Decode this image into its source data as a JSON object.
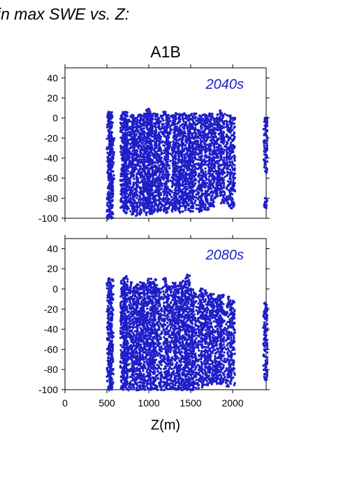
{
  "header_text": "in max SWE vs. Z:",
  "scenario_title": "A1B",
  "dot_color": "#1e1ec8",
  "chart_data": [
    {
      "type": "scatter",
      "label": "2040s",
      "xlim": [
        0,
        2400
      ],
      "ylim": [
        -100,
        50
      ],
      "y_ticks": [
        40,
        20,
        0,
        -20,
        -40,
        -60,
        -80,
        -100
      ],
      "x_ticks": [
        0,
        500,
        1000,
        1500,
        2000
      ],
      "show_x_labels": false,
      "clusters": [
        {
          "x": 530,
          "ymin": -100,
          "ymax": 6
        },
        {
          "x": 545,
          "ymin": -100,
          "ymax": 4
        },
        {
          "x": 560,
          "ymin": -70,
          "ymax": -20
        },
        {
          "x": 690,
          "ymin": -90,
          "ymax": 4
        },
        {
          "x": 720,
          "ymin": -92,
          "ymax": 6
        },
        {
          "x": 740,
          "ymin": -95,
          "ymax": -2
        },
        {
          "x": 800,
          "ymin": -96,
          "ymax": 3
        },
        {
          "x": 830,
          "ymin": -97,
          "ymax": 0
        },
        {
          "x": 880,
          "ymin": -96,
          "ymax": 3
        },
        {
          "x": 920,
          "ymin": -95,
          "ymax": 2
        },
        {
          "x": 960,
          "ymin": -94,
          "ymax": 4
        },
        {
          "x": 990,
          "ymin": -96,
          "ymax": 9
        },
        {
          "x": 1020,
          "ymin": -95,
          "ymax": 3
        },
        {
          "x": 1050,
          "ymin": -94,
          "ymax": 4
        },
        {
          "x": 1100,
          "ymin": -93,
          "ymax": 3
        },
        {
          "x": 1140,
          "ymin": -92,
          "ymax": 2
        },
        {
          "x": 1200,
          "ymin": -95,
          "ymax": 6
        },
        {
          "x": 1230,
          "ymin": -90,
          "ymax": 3
        },
        {
          "x": 1300,
          "ymin": -93,
          "ymax": 2
        },
        {
          "x": 1340,
          "ymin": -92,
          "ymax": 4
        },
        {
          "x": 1380,
          "ymin": -95,
          "ymax": 3
        },
        {
          "x": 1420,
          "ymin": -93,
          "ymax": 4
        },
        {
          "x": 1460,
          "ymin": -92,
          "ymax": 2
        },
        {
          "x": 1500,
          "ymin": -93,
          "ymax": 3
        },
        {
          "x": 1540,
          "ymin": -90,
          "ymax": 4
        },
        {
          "x": 1610,
          "ymin": -93,
          "ymax": 2
        },
        {
          "x": 1650,
          "ymin": -92,
          "ymax": 3
        },
        {
          "x": 1700,
          "ymin": -91,
          "ymax": 2
        },
        {
          "x": 1750,
          "ymin": -88,
          "ymax": 4
        },
        {
          "x": 1800,
          "ymin": -80,
          "ymax": 0
        },
        {
          "x": 1840,
          "ymin": -78,
          "ymax": 7
        },
        {
          "x": 1880,
          "ymin": -85,
          "ymax": 4
        },
        {
          "x": 1950,
          "ymin": -88,
          "ymax": 2
        },
        {
          "x": 2000,
          "ymin": -90,
          "ymax": 0
        },
        {
          "x": 2395,
          "ymin": -55,
          "ymax": 0
        },
        {
          "x": 2395,
          "ymin": -90,
          "ymax": -80
        }
      ]
    },
    {
      "type": "scatter",
      "label": "2080s",
      "xlim": [
        0,
        2400
      ],
      "ylim": [
        -100,
        50
      ],
      "y_ticks": [
        40,
        20,
        0,
        -20,
        -40,
        -60,
        -80,
        -100
      ],
      "x_ticks": [
        0,
        500,
        1000,
        1500,
        2000
      ],
      "x_tick_labels": [
        "0",
        "500",
        "1000",
        "1500",
        "2000"
      ],
      "xlabel": "Z(m)",
      "show_x_labels": true,
      "clusters": [
        {
          "x": 530,
          "ymin": -100,
          "ymax": 10
        },
        {
          "x": 550,
          "ymin": -100,
          "ymax": 9
        },
        {
          "x": 690,
          "ymin": -100,
          "ymax": 8
        },
        {
          "x": 720,
          "ymin": -98,
          "ymax": 12
        },
        {
          "x": 740,
          "ymin": -100,
          "ymax": 4
        },
        {
          "x": 800,
          "ymin": -100,
          "ymax": 6
        },
        {
          "x": 840,
          "ymin": -100,
          "ymax": 2
        },
        {
          "x": 880,
          "ymin": -100,
          "ymax": 4
        },
        {
          "x": 920,
          "ymin": -100,
          "ymax": 6
        },
        {
          "x": 960,
          "ymin": -100,
          "ymax": 4
        },
        {
          "x": 1000,
          "ymin": -100,
          "ymax": 10
        },
        {
          "x": 1040,
          "ymin": -100,
          "ymax": 6
        },
        {
          "x": 1080,
          "ymin": -100,
          "ymax": 9
        },
        {
          "x": 1130,
          "ymin": -100,
          "ymax": 0
        },
        {
          "x": 1200,
          "ymin": -100,
          "ymax": 10
        },
        {
          "x": 1240,
          "ymin": -100,
          "ymax": 2
        },
        {
          "x": 1300,
          "ymin": -100,
          "ymax": 6
        },
        {
          "x": 1340,
          "ymin": -100,
          "ymax": 3
        },
        {
          "x": 1380,
          "ymin": -100,
          "ymax": 6
        },
        {
          "x": 1420,
          "ymin": -100,
          "ymax": 8
        },
        {
          "x": 1460,
          "ymin": -100,
          "ymax": 14
        },
        {
          "x": 1500,
          "ymin": -100,
          "ymax": 0
        },
        {
          "x": 1540,
          "ymin": -100,
          "ymax": -4
        },
        {
          "x": 1610,
          "ymin": -98,
          "ymax": -2
        },
        {
          "x": 1650,
          "ymin": -96,
          "ymax": 0
        },
        {
          "x": 1700,
          "ymin": -95,
          "ymax": -4
        },
        {
          "x": 1750,
          "ymin": -94,
          "ymax": -5
        },
        {
          "x": 1800,
          "ymin": -94,
          "ymax": -10
        },
        {
          "x": 1840,
          "ymin": -94,
          "ymax": -7
        },
        {
          "x": 1880,
          "ymin": -95,
          "ymax": -6
        },
        {
          "x": 1950,
          "ymin": -96,
          "ymax": -8
        },
        {
          "x": 2000,
          "ymin": -96,
          "ymax": -12
        },
        {
          "x": 2395,
          "ymin": -90,
          "ymax": -14
        }
      ]
    }
  ]
}
